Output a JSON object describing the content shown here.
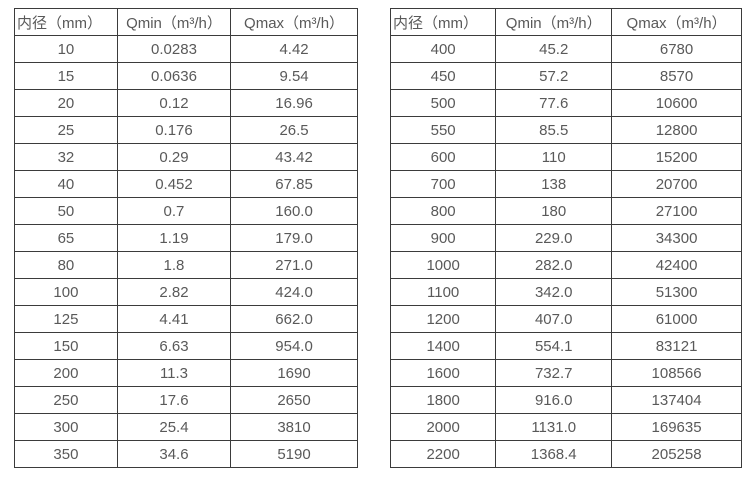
{
  "colors": {
    "border": "#3b3b3b",
    "text": "#595959",
    "background": "#ffffff"
  },
  "tables": [
    {
      "name": "flow-rate-table-small-diameters",
      "headers": [
        "内径（mm）",
        "Qmin（m³/h）",
        "Qmax（m³/h）"
      ],
      "rows": [
        [
          "10",
          "0.0283",
          "4.42"
        ],
        [
          "15",
          "0.0636",
          "9.54"
        ],
        [
          "20",
          "0.12",
          "16.96"
        ],
        [
          "25",
          "0.176",
          "26.5"
        ],
        [
          "32",
          "0.29",
          "43.42"
        ],
        [
          "40",
          "0.452",
          "67.85"
        ],
        [
          "50",
          "0.7",
          "160.0"
        ],
        [
          "65",
          "1.19",
          "179.0"
        ],
        [
          "80",
          "1.8",
          "271.0"
        ],
        [
          "100",
          "2.82",
          "424.0"
        ],
        [
          "125",
          "4.41",
          "662.0"
        ],
        [
          "150",
          "6.63",
          "954.0"
        ],
        [
          "200",
          "11.3",
          "1690"
        ],
        [
          "250",
          "17.6",
          "2650"
        ],
        [
          "300",
          "25.4",
          "3810"
        ],
        [
          "350",
          "34.6",
          "5190"
        ]
      ]
    },
    {
      "name": "flow-rate-table-large-diameters",
      "headers": [
        "内径（mm）",
        "Qmin（m³/h）",
        "Qmax（m³/h）"
      ],
      "rows": [
        [
          "400",
          "45.2",
          "6780"
        ],
        [
          "450",
          "57.2",
          "8570"
        ],
        [
          "500",
          "77.6",
          "10600"
        ],
        [
          "550",
          "85.5",
          "12800"
        ],
        [
          "600",
          "110",
          "15200"
        ],
        [
          "700",
          "138",
          "20700"
        ],
        [
          "800",
          "180",
          "27100"
        ],
        [
          "900",
          "229.0",
          "34300"
        ],
        [
          "1000",
          "282.0",
          "42400"
        ],
        [
          "1100",
          "342.0",
          "51300"
        ],
        [
          "1200",
          "407.0",
          "61000"
        ],
        [
          "1400",
          "554.1",
          "83121"
        ],
        [
          "1600",
          "732.7",
          "108566"
        ],
        [
          "1800",
          "916.0",
          "137404"
        ],
        [
          "2000",
          "1131.0",
          "169635"
        ],
        [
          "2200",
          "1368.4",
          "205258"
        ]
      ]
    }
  ]
}
